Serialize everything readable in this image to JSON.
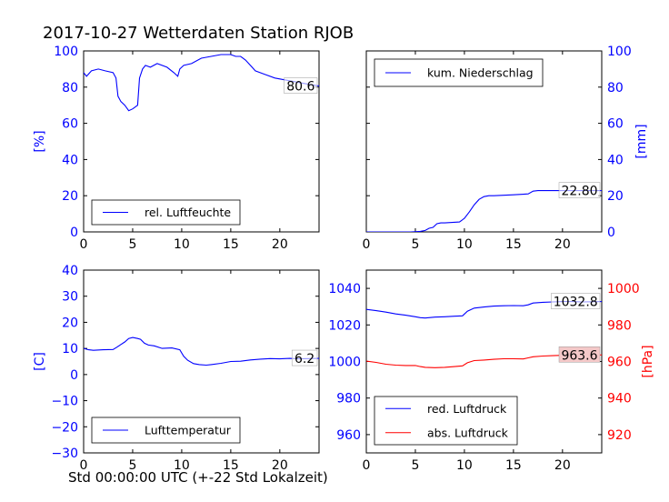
{
  "title": "2017-10-27 Wetterdaten Station RJOB",
  "x_caption": "Std 00:00:00 UTC (+-22 Std Lokalzeit)",
  "colors": {
    "blue": "#0000ff",
    "red": "#ff0000",
    "black": "#000000"
  },
  "chart_data": [
    {
      "type": "line",
      "panel": "top-left",
      "xlim": [
        0,
        24
      ],
      "xticks": [
        0,
        5,
        10,
        15,
        20
      ],
      "ylim": [
        0,
        100
      ],
      "yticks": [
        0,
        20,
        40,
        60,
        80,
        100
      ],
      "ylabel": "[%]",
      "ylabel_side": "left",
      "tick_color": "#0000ff",
      "legend_position": "lower-left",
      "value_label": "80.6",
      "series": [
        {
          "name": "rel. Luftfeuchte",
          "color": "#0000ff",
          "axis": "left",
          "x": [
            0,
            0.3,
            0.8,
            1.5,
            2.2,
            3.0,
            3.3,
            3.5,
            3.8,
            4.2,
            4.6,
            5.0,
            5.5,
            5.7,
            6.0,
            6.3,
            6.8,
            7.5,
            8.5,
            9.2,
            9.6,
            9.8,
            10.2,
            11.0,
            12.0,
            13.0,
            14.0,
            15.0,
            15.5,
            16.0,
            16.5,
            17.0,
            17.5,
            18.5,
            19.5,
            20.5,
            21.5,
            22.5,
            24
          ],
          "y": [
            88,
            86,
            89,
            90,
            89,
            88,
            85,
            75,
            72,
            70,
            67,
            68,
            70,
            85,
            90,
            92,
            91,
            93,
            91,
            88,
            86,
            90,
            92,
            93,
            96,
            97,
            98,
            98,
            97,
            97,
            95,
            92,
            89,
            87,
            85,
            84,
            83,
            82,
            80.6
          ]
        }
      ]
    },
    {
      "type": "line",
      "panel": "top-right",
      "xlim": [
        0,
        24
      ],
      "xticks": [
        0,
        5,
        10,
        15,
        20
      ],
      "ylim": [
        0,
        100
      ],
      "yticks": [
        0,
        20,
        40,
        60,
        80,
        100
      ],
      "ylabel": "[mm]",
      "ylabel_side": "right",
      "tick_color": "#0000ff",
      "legend_position": "upper-left",
      "value_label": "22.80",
      "series": [
        {
          "name": "kum. Niederschlag",
          "color": "#0000ff",
          "axis": "right",
          "x": [
            0,
            4.5,
            5.5,
            6.0,
            6.4,
            6.8,
            7.2,
            7.6,
            8.0,
            9.5,
            10.0,
            10.5,
            11.0,
            11.5,
            12.0,
            12.5,
            13.0,
            15.0,
            16.0,
            16.5,
            17.0,
            17.5,
            18.5,
            20.0,
            24
          ],
          "y": [
            0,
            0,
            0.3,
            0.8,
            2,
            2.5,
            4.5,
            5,
            5,
            5.5,
            7.5,
            11,
            15,
            18,
            19.5,
            20,
            20,
            20.5,
            20.8,
            21,
            22.5,
            22.8,
            22.8,
            22.8,
            22.8
          ]
        }
      ]
    },
    {
      "type": "line",
      "panel": "bottom-left",
      "xlim": [
        0,
        24
      ],
      "xticks": [
        0,
        5,
        10,
        15,
        20
      ],
      "ylim": [
        -30,
        40
      ],
      "yticks": [
        -30,
        -20,
        -10,
        0,
        10,
        20,
        30,
        40
      ],
      "ylabel": "[C]",
      "ylabel_side": "left",
      "tick_color": "#0000ff",
      "legend_position": "lower-left",
      "value_label": "6.2",
      "series": [
        {
          "name": "Lufttemperatur",
          "color": "#0000ff",
          "axis": "left",
          "x": [
            0,
            0.5,
            1.0,
            2.0,
            3.0,
            3.4,
            3.8,
            4.2,
            4.6,
            5.0,
            5.5,
            5.8,
            6.2,
            6.6,
            7.2,
            8.0,
            9.0,
            9.8,
            10.2,
            10.6,
            11.2,
            11.8,
            12.5,
            13.0,
            14.0,
            15.0,
            16.0,
            17.0,
            18.0,
            19.0,
            20.0,
            21.0,
            22.0,
            23.0,
            24
          ],
          "y": [
            10,
            9.5,
            9.3,
            9.5,
            9.6,
            10.5,
            11.5,
            12.5,
            13.8,
            14.2,
            13.8,
            13.5,
            12,
            11.3,
            11,
            10,
            10.2,
            9.5,
            7,
            5.5,
            4.2,
            3.8,
            3.6,
            3.8,
            4.3,
            5,
            5.1,
            5.6,
            5.9,
            6.1,
            6.0,
            6.2,
            6.0,
            6.1,
            6.2
          ]
        }
      ]
    },
    {
      "type": "line",
      "panel": "bottom-right",
      "xlim": [
        0,
        24
      ],
      "xticks": [
        0,
        5,
        10,
        15,
        20
      ],
      "ylim": [
        950,
        1050
      ],
      "yticks": [
        960,
        980,
        1000,
        1020,
        1040
      ],
      "ylim_right": [
        910,
        1010
      ],
      "yticks_right": [
        920,
        940,
        960,
        980,
        1000
      ],
      "ylabel_right": "[hPa]",
      "ylabel_side": "right",
      "tick_color": "#0000ff",
      "tick_color_right": "#ff0000",
      "legend_position": "lower-left",
      "value_labels": [
        "1032.8",
        "963.6"
      ],
      "series": [
        {
          "name": "red. Luftdruck",
          "color": "#0000ff",
          "axis": "left",
          "x": [
            0,
            1,
            2,
            3,
            4,
            5,
            5.5,
            6,
            7,
            8,
            9,
            9.8,
            10.3,
            11,
            12,
            13,
            14,
            15,
            16,
            16.5,
            17,
            18,
            19,
            20,
            21,
            22,
            23,
            24
          ],
          "y": [
            1028.5,
            1027.8,
            1027,
            1026,
            1025.3,
            1024.5,
            1024,
            1023.8,
            1024.3,
            1024.5,
            1024.8,
            1025,
            1027.5,
            1029.2,
            1029.8,
            1030.3,
            1030.5,
            1030.6,
            1030.5,
            1031,
            1032,
            1032.4,
            1032.6,
            1032.8,
            1032.8,
            1032.6,
            1032.7,
            1032.8
          ]
        },
        {
          "name": "abs. Luftdruck",
          "color": "#ff0000",
          "axis": "right",
          "x": [
            0,
            1,
            2,
            3,
            4,
            5,
            5.5,
            6,
            7,
            8,
            9,
            9.8,
            10.3,
            11,
            12,
            13,
            14,
            15,
            16,
            16.5,
            17,
            18,
            19,
            20,
            21,
            22,
            23,
            24
          ],
          "y": [
            960.2,
            959.5,
            958.5,
            958,
            957.8,
            957.8,
            957.2,
            956.8,
            956.6,
            956.8,
            957.2,
            957.6,
            959.3,
            960.5,
            960.8,
            961.2,
            961.5,
            961.5,
            961.4,
            962,
            962.6,
            963,
            963.2,
            963.4,
            963.5,
            963.6,
            963.6,
            963.6
          ]
        }
      ]
    }
  ]
}
